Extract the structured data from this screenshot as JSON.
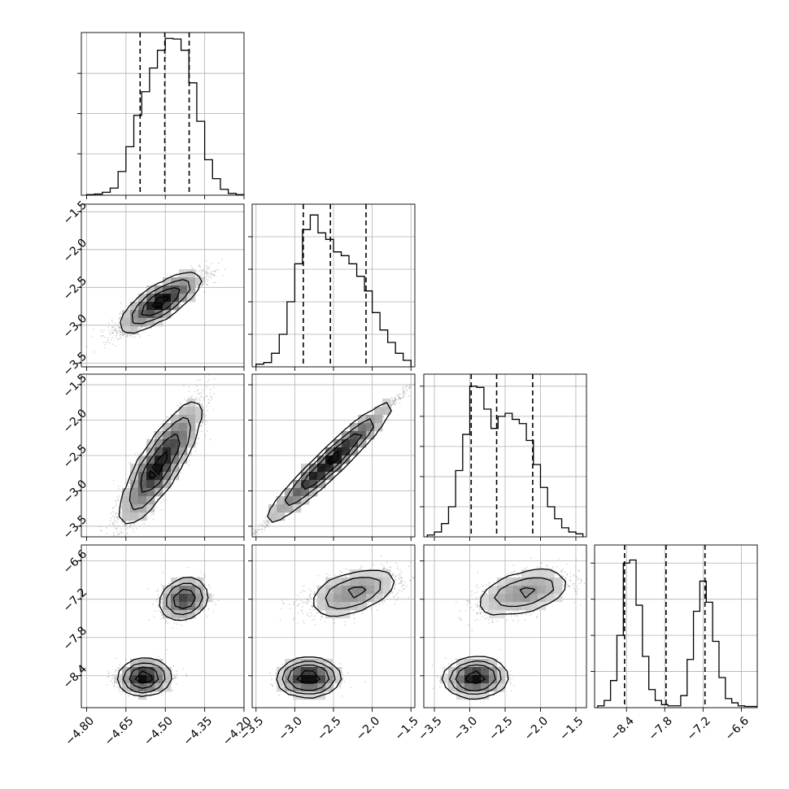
{
  "figure": {
    "type": "corner-plot",
    "grid": true,
    "colors": {
      "background": "#ffffff",
      "frame": "#000000",
      "grid": "#b0b0b0",
      "histogram": "#000000",
      "quantile_line": "#000000",
      "scatter": "#555555",
      "density_dark": "#000000",
      "density_light": "#d0d0d0",
      "contour": "#000000"
    }
  },
  "chart_data": [
    {
      "type": "histogram",
      "panel": "p1-hist",
      "xlim": [
        -4.82,
        -4.2
      ],
      "bin_edges": [
        -4.8,
        -4.77,
        -4.74,
        -4.71,
        -4.68,
        -4.65,
        -4.62,
        -4.59,
        -4.56,
        -4.53,
        -4.5,
        -4.47,
        -4.44,
        -4.41,
        -4.38,
        -4.35,
        -4.32,
        -4.29,
        -4.26,
        -4.23,
        -4.2
      ],
      "counts": [
        1,
        2,
        5,
        12,
        40,
        82,
        135,
        175,
        215,
        245,
        265,
        264,
        245,
        190,
        125,
        60,
        28,
        10,
        3,
        1
      ],
      "quantiles": [
        -4.596,
        -4.502,
        -4.409
      ],
      "ymax": 275,
      "y_tick_positions": [
        70,
        138,
        206
      ]
    },
    {
      "type": "histogram",
      "panel": "p2-hist",
      "xlim": [
        -3.55,
        -1.45
      ],
      "bin_edges": [
        -3.5,
        -3.4,
        -3.3,
        -3.2,
        -3.1,
        -3.0,
        -2.9,
        -2.8,
        -2.7,
        -2.6,
        -2.5,
        -2.4,
        -2.3,
        -2.2,
        -2.1,
        -2.0,
        -1.9,
        -1.8,
        -1.7,
        -1.6,
        -1.5
      ],
      "counts": [
        5,
        8,
        25,
        60,
        120,
        190,
        253,
        280,
        247,
        235,
        212,
        205,
        190,
        167,
        140,
        100,
        68,
        45,
        25,
        12
      ],
      "quantiles": [
        -2.89,
        -2.54,
        -2.08
      ],
      "ymax": 300,
      "y_tick_positions": [
        60,
        120,
        180,
        240
      ]
    },
    {
      "type": "histogram",
      "panel": "p3-hist",
      "xlim": [
        -3.65,
        -1.35
      ],
      "bin_edges": [
        -3.6,
        -3.5,
        -3.4,
        -3.3,
        -3.2,
        -3.1,
        -3.0,
        -2.9,
        -2.8,
        -2.7,
        -2.6,
        -2.5,
        -2.4,
        -2.3,
        -2.2,
        -2.1,
        -2.0,
        -1.9,
        -1.8,
        -1.7,
        -1.6,
        -1.5,
        -1.4
      ],
      "counts": [
        3,
        8,
        22,
        50,
        110,
        170,
        250,
        248,
        212,
        180,
        200,
        205,
        195,
        188,
        160,
        120,
        82,
        50,
        30,
        15,
        8,
        5
      ],
      "quantiles": [
        -2.98,
        -2.62,
        -2.11
      ],
      "ymax": 270,
      "y_tick_positions": [
        50,
        100,
        150,
        200,
        250
      ]
    },
    {
      "type": "histogram",
      "panel": "p4-hist",
      "xlim": [
        -8.9,
        -6.35
      ],
      "bin_edges": [
        -8.85,
        -8.75,
        -8.65,
        -8.55,
        -8.45,
        -8.35,
        -8.25,
        -8.15,
        -8.05,
        -7.95,
        -7.85,
        -7.75,
        -7.65,
        -7.55,
        -7.45,
        -7.35,
        -7.25,
        -7.15,
        -7.05,
        -6.95,
        -6.85,
        -6.75,
        -6.65,
        -6.55,
        -6.45,
        -6.35
      ],
      "counts": [
        3,
        12,
        45,
        120,
        240,
        245,
        170,
        85,
        30,
        12,
        5,
        3,
        3,
        20,
        80,
        160,
        210,
        175,
        110,
        50,
        15,
        8,
        3,
        2,
        2
      ],
      "quantiles": [
        -8.43,
        -7.78,
        -7.17
      ],
      "ymax": 270,
      "y_tick_positions": [
        60,
        120,
        180,
        240
      ]
    },
    {
      "type": "scatter-density",
      "panel": "p21",
      "xlim": [
        -4.82,
        -4.2
      ],
      "ylim": [
        -3.55,
        -1.4
      ],
      "components": [
        {
          "mean": [
            -4.52,
            -2.7
          ],
          "sd_along": 0.075,
          "sd_across": 0.18,
          "rho": 0.88,
          "n": 3200
        }
      ]
    },
    {
      "type": "scatter-density",
      "panel": "p31",
      "xlim": [
        -4.82,
        -4.2
      ],
      "ylim": [
        -3.65,
        -1.35
      ],
      "components": [
        {
          "mean": [
            -4.52,
            -2.62
          ],
          "sd_along": 0.075,
          "sd_across": 0.42,
          "rho": 0.88,
          "n": 3200
        }
      ]
    },
    {
      "type": "scatter-density",
      "panel": "p32",
      "xlim": [
        -3.55,
        -1.45
      ],
      "ylim": [
        -3.65,
        -1.35
      ],
      "components": [
        {
          "mean": [
            -2.55,
            -2.6
          ],
          "sd_along": 0.4,
          "sd_across": 0.42,
          "rho": 0.995,
          "n": 3200
        }
      ]
    },
    {
      "type": "scatter-density",
      "panel": "p41",
      "xlim": [
        -4.82,
        -4.2
      ],
      "ylim": [
        -8.9,
        -6.35
      ],
      "components": [
        {
          "mean": [
            -4.58,
            -8.43
          ],
          "sd": [
            0.045,
            0.1
          ],
          "rho": 0.05,
          "n": 1700
        },
        {
          "mean": [
            -4.43,
            -7.2
          ],
          "sd": [
            0.04,
            0.14
          ],
          "rho": 0.25,
          "n": 1500
        }
      ]
    },
    {
      "type": "scatter-density",
      "panel": "p42",
      "xlim": [
        -3.55,
        -1.45
      ],
      "ylim": [
        -8.9,
        -6.35
      ],
      "components": [
        {
          "mean": [
            -2.82,
            -8.43
          ],
          "sd": [
            0.17,
            0.1
          ],
          "rho": 0.05,
          "n": 1700
        },
        {
          "mean": [
            -2.25,
            -7.1
          ],
          "sd": [
            0.3,
            0.17
          ],
          "rho": 0.55,
          "n": 1500
        }
      ]
    },
    {
      "type": "scatter-density",
      "panel": "p43",
      "xlim": [
        -3.65,
        -1.35
      ],
      "ylim": [
        -8.9,
        -6.35
      ],
      "components": [
        {
          "mean": [
            -2.92,
            -8.43
          ],
          "sd": [
            0.18,
            0.1
          ],
          "rho": 0.05,
          "n": 1700
        },
        {
          "mean": [
            -2.25,
            -7.1
          ],
          "sd": [
            0.32,
            0.17
          ],
          "rho": 0.55,
          "n": 1500
        }
      ]
    }
  ],
  "axes": {
    "x_ticks": [
      {
        "panel": "p41",
        "ticks": [
          {
            "value": -4.8,
            "label": "−4.80"
          },
          {
            "value": -4.65,
            "label": "−4.65"
          },
          {
            "value": -4.5,
            "label": "−4.50"
          },
          {
            "value": -4.35,
            "label": "−4.35"
          },
          {
            "value": -4.2,
            "label": "−4.20"
          }
        ]
      },
      {
        "panel": "p42",
        "ticks": [
          {
            "value": -3.5,
            "label": "−3.5"
          },
          {
            "value": -3.0,
            "label": "−3.0"
          },
          {
            "value": -2.5,
            "label": "−2.5"
          },
          {
            "value": -2.0,
            "label": "−2.0"
          },
          {
            "value": -1.5,
            "label": "−1.5"
          }
        ]
      },
      {
        "panel": "p43",
        "ticks": [
          {
            "value": -3.5,
            "label": "−3.5"
          },
          {
            "value": -3.0,
            "label": "−3.0"
          },
          {
            "value": -2.5,
            "label": "−2.5"
          },
          {
            "value": -2.0,
            "label": "−2.0"
          },
          {
            "value": -1.5,
            "label": "−1.5"
          }
        ]
      },
      {
        "panel": "p4-hist",
        "ticks": [
          {
            "value": -8.4,
            "label": "−8.4"
          },
          {
            "value": -7.8,
            "label": "−7.8"
          },
          {
            "value": -7.2,
            "label": "−7.2"
          },
          {
            "value": -6.6,
            "label": "−6.6"
          }
        ]
      }
    ],
    "y_ticks": [
      {
        "row": 2,
        "ticks": [
          {
            "value": -1.5,
            "label": "−1.5"
          },
          {
            "value": -2.0,
            "label": "−2.0"
          },
          {
            "value": -2.5,
            "label": "−2.5"
          },
          {
            "value": -3.0,
            "label": "−3.0"
          },
          {
            "value": -3.5,
            "label": "−3.5"
          }
        ]
      },
      {
        "row": 3,
        "ticks": [
          {
            "value": -1.5,
            "label": "−1.5"
          },
          {
            "value": -2.0,
            "label": "−2.0"
          },
          {
            "value": -2.5,
            "label": "−2.5"
          },
          {
            "value": -3.0,
            "label": "−3.0"
          },
          {
            "value": -3.5,
            "label": "−3.5"
          }
        ]
      },
      {
        "row": 4,
        "ticks": [
          {
            "value": -6.6,
            "label": "−6.6"
          },
          {
            "value": -7.2,
            "label": "−7.2"
          },
          {
            "value": -7.8,
            "label": "−7.8"
          },
          {
            "value": -8.4,
            "label": "−8.4"
          }
        ]
      }
    ]
  }
}
